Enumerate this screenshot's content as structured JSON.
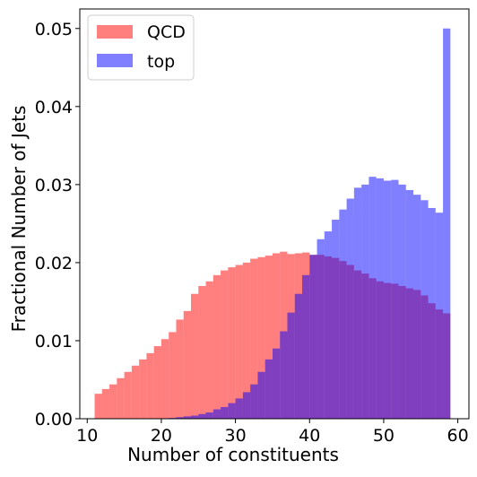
{
  "chart_data": {
    "type": "bar",
    "title": "",
    "xlabel": "Number of constituents",
    "ylabel": "Fractional Number of Jets",
    "xlim": [
      9,
      61.5
    ],
    "ylim": [
      0,
      0.0525
    ],
    "xticks": [
      10,
      20,
      30,
      40,
      50,
      60
    ],
    "xtick_labels": [
      "10",
      "20",
      "30",
      "40",
      "50",
      "60"
    ],
    "yticks": [
      0,
      0.01,
      0.02,
      0.03,
      0.04,
      0.05
    ],
    "ytick_labels": [
      "0.00",
      "0.01",
      "0.02",
      "0.03",
      "0.04",
      "0.05"
    ],
    "bin_edges": [
      11,
      12,
      13,
      14,
      15,
      16,
      17,
      18,
      19,
      20,
      21,
      22,
      23,
      24,
      25,
      26,
      27,
      28,
      29,
      30,
      31,
      32,
      33,
      34,
      35,
      36,
      37,
      38,
      39,
      40,
      41,
      42,
      43,
      44,
      45,
      46,
      47,
      48,
      49,
      50,
      51,
      52,
      53,
      54,
      55,
      56,
      57,
      58,
      59
    ],
    "grid": false,
    "legend_position": "top-left",
    "series": [
      {
        "name": "QCD",
        "color": "#ff0000",
        "alpha": 0.5,
        "values": [
          0.0032,
          0.0038,
          0.0044,
          0.0052,
          0.006,
          0.0068,
          0.0076,
          0.0084,
          0.0093,
          0.0102,
          0.0111,
          0.0127,
          0.0138,
          0.016,
          0.017,
          0.0176,
          0.0184,
          0.019,
          0.0194,
          0.0197,
          0.02,
          0.0205,
          0.0207,
          0.0209,
          0.0212,
          0.0214,
          0.0211,
          0.0212,
          0.0213,
          0.021,
          0.021,
          0.0208,
          0.0206,
          0.0202,
          0.0197,
          0.019,
          0.0186,
          0.018,
          0.0176,
          0.0174,
          0.0173,
          0.017,
          0.0167,
          0.0165,
          0.0158,
          0.0148,
          0.014,
          0.0135
        ]
      },
      {
        "name": "top",
        "color": "#0000ff",
        "alpha": 0.5,
        "values": [
          0.0,
          0.0,
          0.0,
          0.0,
          0.0,
          0.0,
          0.0,
          0.0,
          0.0,
          0.0,
          0.0001,
          0.0002,
          0.0003,
          0.0004,
          0.0006,
          0.0008,
          0.0012,
          0.0015,
          0.002,
          0.0026,
          0.0034,
          0.0044,
          0.006,
          0.0076,
          0.009,
          0.0112,
          0.0136,
          0.016,
          0.0184,
          0.021,
          0.023,
          0.024,
          0.0255,
          0.0268,
          0.0282,
          0.0296,
          0.03,
          0.031,
          0.0308,
          0.0305,
          0.0306,
          0.03,
          0.0293,
          0.0287,
          0.028,
          0.027,
          0.0264,
          0.05
        ]
      }
    ]
  }
}
